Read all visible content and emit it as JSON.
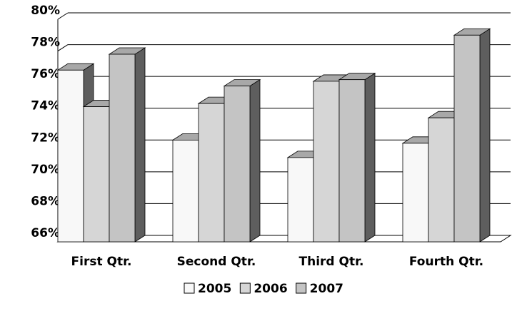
{
  "chart_data": {
    "type": "bar3d",
    "categories": [
      "First Qtr.",
      "Second Qtr.",
      "Third Qtr.",
      "Fourth Qtr."
    ],
    "series": [
      {
        "name": "2005",
        "color": "#f8f8f8",
        "values": [
          76.8,
          72.4,
          71.3,
          72.2
        ]
      },
      {
        "name": "2006",
        "color": "#d6d6d6",
        "values": [
          74.5,
          74.7,
          76.1,
          73.8
        ]
      },
      {
        "name": "2007",
        "color": "#c4c4c4",
        "values": [
          77.8,
          75.8,
          76.2,
          79.0
        ]
      }
    ],
    "ylim": [
      66,
      80
    ],
    "yticks": [
      {
        "value": 66,
        "label": "66%"
      },
      {
        "value": 68,
        "label": "68%"
      },
      {
        "value": 70,
        "label": "70%"
      },
      {
        "value": 72,
        "label": "72%"
      },
      {
        "value": 74,
        "label": "74%"
      },
      {
        "value": 76,
        "label": "76%"
      },
      {
        "value": 78,
        "label": "78%"
      },
      {
        "value": 80,
        "label": "80%"
      }
    ],
    "grid": true,
    "legend": "bottom"
  }
}
